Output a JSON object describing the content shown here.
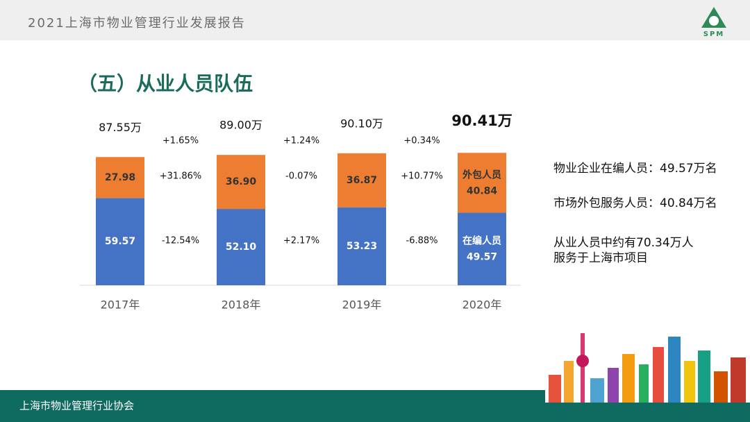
{
  "header": {
    "title": "2021上海市物业管理行业发展报告",
    "logo": "SPM"
  },
  "section_title": "（五）从业人员队伍",
  "chart_data": {
    "type": "bar",
    "stacked": true,
    "categories": [
      "2017年",
      "2018年",
      "2019年",
      "2020年"
    ],
    "series": [
      {
        "name": "在编人员",
        "color": "#4472c4",
        "values": [
          59.57,
          52.1,
          53.23,
          49.57
        ],
        "value_labels": [
          "59.57",
          "52.10",
          "53.23",
          "49.57"
        ]
      },
      {
        "name": "外包人员",
        "color": "#ed7d31",
        "values": [
          27.98,
          36.9,
          36.87,
          40.84
        ],
        "value_labels": [
          "27.98",
          "36.90",
          "36.87",
          "40.84"
        ]
      }
    ],
    "totals": {
      "values": [
        87.55,
        89.0,
        90.1,
        90.41
      ],
      "value_labels": [
        "87.55万",
        "89.00万",
        "90.10万",
        "90.41万"
      ]
    },
    "changes": [
      {
        "total": "+1.65%",
        "series": [
          "-12.54%",
          "+31.86%"
        ]
      },
      {
        "total": "+1.24%",
        "series": [
          "+2.17%",
          "-0.07%"
        ]
      },
      {
        "total": "+0.34%",
        "series": [
          "-6.88%",
          "+10.77%"
        ]
      }
    ],
    "ylim": [
      0,
      100
    ]
  },
  "notes": [
    "物业企业在编人员：49.57万名",
    "市场外包服务人员：40.84万名",
    "从业人员中约有70.34万人",
    "服务于上海市项目"
  ],
  "footer": {
    "text": "上海市物业管理行业协会"
  }
}
